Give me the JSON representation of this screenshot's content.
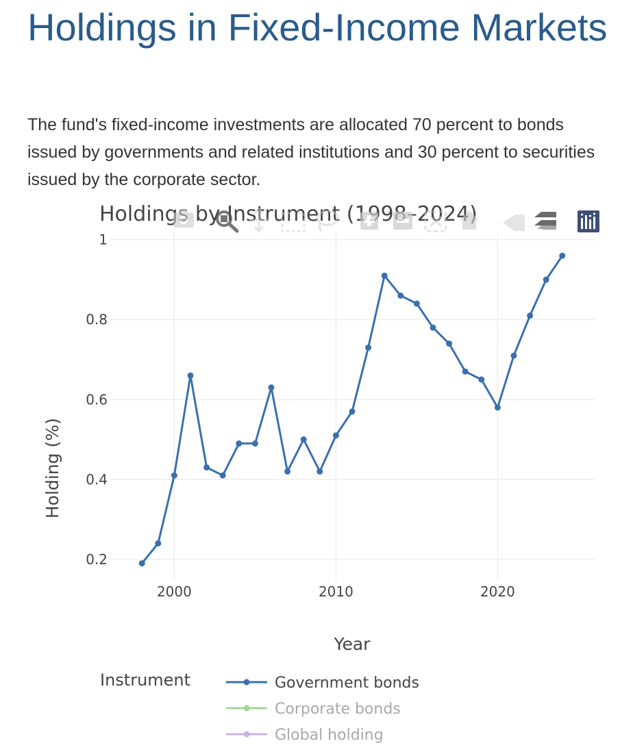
{
  "page": {
    "heading": "Holdings in Fixed-Income Markets",
    "lead": "The fund's fixed-income investments are allocated 70 percent to bonds issued by governments and related institutions and 30 percent to securities issued by the corporate sector."
  },
  "modebar": {
    "icons": [
      "camera-icon",
      "zoom-icon",
      "pan-icon",
      "box-select-icon",
      "lasso-icon",
      "zoom-in-icon",
      "zoom-out-icon",
      "autoscale-icon",
      "reset-axes-icon",
      "spike-lines-icon",
      "hover-compare-icon",
      "plotly-logo-icon"
    ]
  },
  "chart_data": {
    "type": "line",
    "title": "Holdings by Instrument (1998–2024)",
    "xlabel": "Year",
    "ylabel": "Holding (%)",
    "xlim": [
      1996,
      2026
    ],
    "ylim": [
      0.15,
      1.02
    ],
    "xticks": [
      2000,
      2010,
      2020
    ],
    "yticks": [
      0.2,
      0.4,
      0.6,
      0.8,
      1
    ],
    "ytick_labels": [
      "0.2",
      "0.4",
      "0.6",
      "0.8",
      "1"
    ],
    "grid": true,
    "legend": {
      "title": "Instrument",
      "position": "bottom"
    },
    "series": [
      {
        "name": "Government bonds",
        "color": "#3a70ad",
        "visible": true,
        "x": [
          1998,
          1999,
          2000,
          2001,
          2002,
          2003,
          2004,
          2005,
          2006,
          2007,
          2008,
          2009,
          2010,
          2011,
          2012,
          2013,
          2014,
          2015,
          2016,
          2017,
          2018,
          2019,
          2020,
          2021,
          2022,
          2023,
          2024
        ],
        "y": [
          0.19,
          0.24,
          0.41,
          0.66,
          0.43,
          0.41,
          0.49,
          0.49,
          0.63,
          0.42,
          0.5,
          0.42,
          0.51,
          0.57,
          0.73,
          0.91,
          0.86,
          0.84,
          0.78,
          0.74,
          0.67,
          0.65,
          0.58,
          0.71,
          0.81,
          0.9,
          0.96
        ]
      },
      {
        "name": "Corporate bonds",
        "color": "#a6d49c",
        "visible": false
      },
      {
        "name": "Global holding",
        "color": "#c9b3e0",
        "visible": false
      }
    ]
  }
}
